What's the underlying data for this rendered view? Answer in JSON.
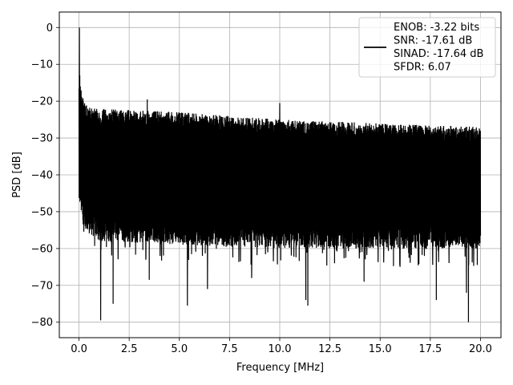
{
  "chart_data": {
    "type": "line",
    "title": "",
    "xlabel": "Frequency [MHz]",
    "ylabel": "PSD [dB]",
    "xlim": [
      -0.98,
      21.02
    ],
    "ylim": [
      -84.2,
      4.2
    ],
    "x_ticks": [
      0.0,
      2.5,
      5.0,
      7.5,
      10.0,
      12.5,
      15.0,
      17.5,
      20.0
    ],
    "x_tick_labels": [
      "0.0",
      "2.5",
      "5.0",
      "7.5",
      "10.0",
      "12.5",
      "15.0",
      "17.5",
      "20.0"
    ],
    "y_ticks": [
      0,
      -10,
      -20,
      -30,
      -40,
      -50,
      -60,
      -70,
      -80
    ],
    "y_tick_labels": [
      "0",
      "−10",
      "−20",
      "−30",
      "−40",
      "−50",
      "−60",
      "−70",
      "−80"
    ],
    "grid": true,
    "legend": {
      "placement": "top-right",
      "entries": [
        "ENOB: -3.22 bits",
        "SNR: -17.61 dB",
        "SINAD: -17.64 dB",
        "SFDR: 6.07"
      ]
    },
    "series": [
      {
        "color": "#000000",
        "upper_envelope": {
          "x": [
            0.0,
            0.3,
            1.0,
            5.0,
            10.0,
            15.0,
            20.0
          ],
          "y": [
            -14,
            -21,
            -22,
            -23,
            -25,
            -26,
            -27
          ]
        },
        "lower_envelope": {
          "x": [
            0.0,
            0.3,
            1.0,
            5.0,
            10.0,
            15.0,
            20.0
          ],
          "y": [
            -47,
            -52,
            -55,
            -56,
            -57,
            -57,
            -57
          ]
        },
        "peaks": [
          {
            "x": 0.02,
            "y": 0.0
          },
          {
            "x": 0.04,
            "y": -13
          },
          {
            "x": 3.4,
            "y": -19.5
          },
          {
            "x": 10.0,
            "y": -20.5
          }
        ],
        "dips": [
          {
            "x": 1.08,
            "y": -79.5
          },
          {
            "x": 1.7,
            "y": -75
          },
          {
            "x": 3.5,
            "y": -68.5
          },
          {
            "x": 5.4,
            "y": -75.5
          },
          {
            "x": 6.4,
            "y": -71
          },
          {
            "x": 8.6,
            "y": -68
          },
          {
            "x": 11.3,
            "y": -74
          },
          {
            "x": 11.4,
            "y": -75.5
          },
          {
            "x": 14.2,
            "y": -69
          },
          {
            "x": 17.8,
            "y": -74
          },
          {
            "x": 19.4,
            "y": -80
          },
          {
            "x": 19.3,
            "y": -72
          }
        ]
      }
    ]
  }
}
